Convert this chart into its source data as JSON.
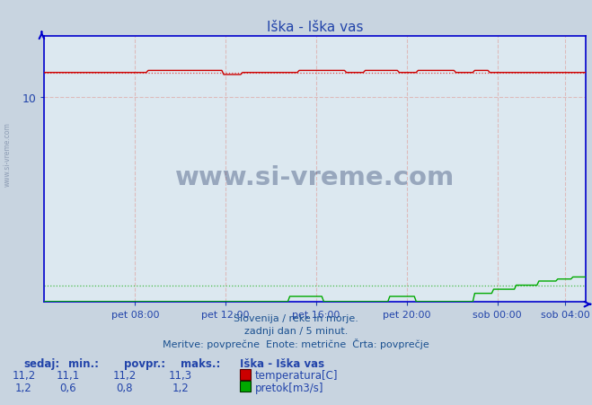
{
  "title": "Iška - Iška vas",
  "bg_color": "#c8d4e0",
  "plot_bg_color": "#dce8f0",
  "title_color": "#2244aa",
  "axis_color": "#0000cc",
  "tick_color": "#2244aa",
  "temp_color": "#cc0000",
  "flow_color": "#00aa00",
  "temp_avg_color": "#dd4444",
  "flow_avg_color": "#44bb44",
  "grid_v_color": "#ddbbbb",
  "grid_h_color": "#ddbbbb",
  "ylim": [
    0,
    13.0
  ],
  "n_points": 288,
  "x_tick_labels": [
    "pet 08:00",
    "pet 12:00",
    "pet 16:00",
    "pet 20:00",
    "sob 00:00",
    "sob 04:00"
  ],
  "x_tick_positions": [
    48,
    96,
    144,
    192,
    240,
    276
  ],
  "temp_base": 11.2,
  "temp_high": 11.3,
  "temp_low": 11.1,
  "flow_avg_val": 0.8,
  "footer_line1": "Slovenija / reke in morje.",
  "footer_line2": "zadnji dan / 5 minut.",
  "footer_line3": "Meritve: povprečne  Enote: metrične  Črta: povprečje",
  "legend_title": "Iška - Iška vas",
  "label_sedaj": "sedaj:",
  "label_min": "min.:",
  "label_povpr": "povpr.:",
  "label_maks": "maks.:",
  "label_temp": "temperatura[C]",
  "label_flow": "pretok[m3/s]",
  "temp_current": "11,2",
  "temp_min_s": "11,1",
  "temp_avg_s": "11,2",
  "temp_max_s": "11,3",
  "flow_current": "1,2",
  "flow_min_s": "0,6",
  "flow_avg_s": "0,8",
  "flow_max_s": "1,2",
  "watermark": "www.si-vreme.com"
}
